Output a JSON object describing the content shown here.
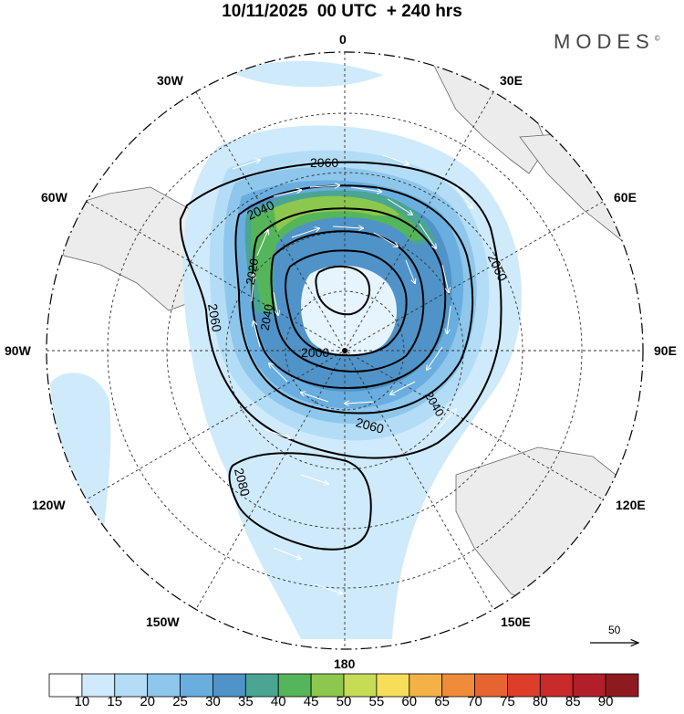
{
  "title": "10/11/2025  00 UTC  + 240 hrs",
  "logo": {
    "text": "MODES",
    "mark": "©"
  },
  "longitude_labels": {
    "lon_0": "0",
    "lon_30e": "30E",
    "lon_60e": "60E",
    "lon_90e": "90E",
    "lon_120e": "120E",
    "lon_150e": "150E",
    "lon_180": "180",
    "lon_150w": "150W",
    "lon_120w": "120W",
    "lon_90w": "90W",
    "lon_60w": "60W",
    "lon_30w": "30W"
  },
  "contour_labels": {
    "c2060_top": "2060",
    "c2040_top": "2040",
    "c2060_right": "2060",
    "c2020_left": "2020",
    "c2060_left": "2060",
    "c2040_left": "2040",
    "c2000": "2000",
    "c2040_right": "2040",
    "c2060_bottom": "2060",
    "c2080": "2080"
  },
  "reference_vector": {
    "value": "50"
  },
  "colorbar": {
    "colors": [
      "#ffffff",
      "#cfeafb",
      "#b3ddf6",
      "#8ec6ec",
      "#6aaee0",
      "#4f93c8",
      "#4aa593",
      "#55b55a",
      "#8cc84d",
      "#c6dc55",
      "#f7de5a",
      "#f4b148",
      "#ef8c3a",
      "#e7632f",
      "#dc3e29",
      "#c92a2a",
      "#b21f2a",
      "#8e1a20"
    ],
    "labels": [
      "10",
      "15",
      "20",
      "25",
      "30",
      "35",
      "40",
      "45",
      "50",
      "55",
      "60",
      "65",
      "70",
      "75",
      "80",
      "85",
      "90"
    ]
  }
}
